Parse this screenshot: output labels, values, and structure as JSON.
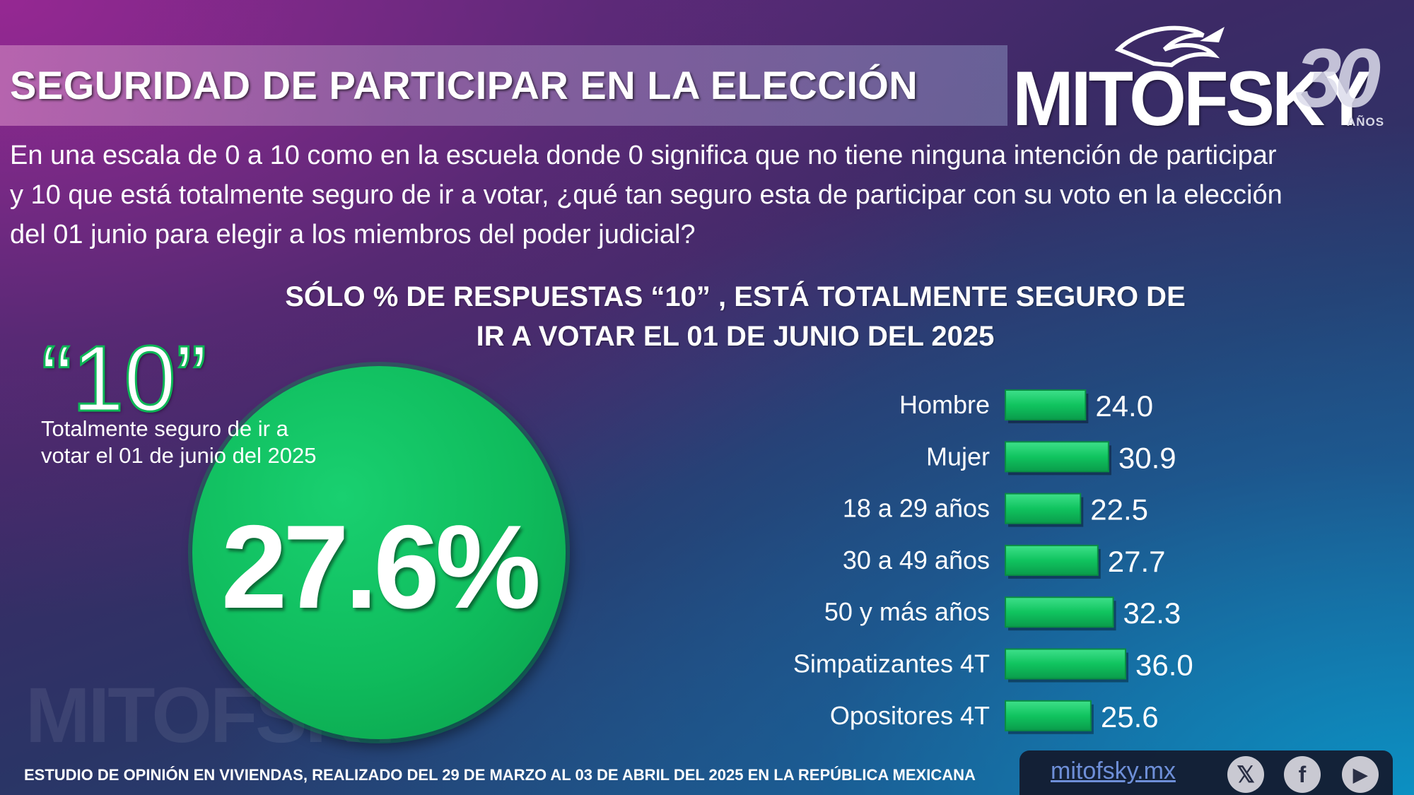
{
  "header": {
    "title": "SEGURIDAD DE PARTICIPAR EN LA ELECCIÓN",
    "logo_text": "MITOFSKY",
    "logo_number": "30",
    "logo_suffix": "AÑOS"
  },
  "question": "En una escala de 0 a 10 como en la escuela donde 0 significa que no tiene ninguna intención de participar y 10 que está totalmente seguro de ir a votar, ¿qué tan seguro esta de participar con su voto en la elección del 01 junio para elegir a los miembros del poder judicial?",
  "subtitle_line1": "SÓLO % DE RESPUESTAS “10” , ESTÁ TOTALMENTE SEGURO DE",
  "subtitle_line2": "IR A VOTAR EL 01  DE JUNIO DEL 2025",
  "highlight": {
    "big_label": "“10”",
    "caption_line1": "Totalmente seguro de ir a",
    "caption_line2": "votar el 01  de junio del 2025",
    "value": "27.6%"
  },
  "chart_data": {
    "type": "bar",
    "orientation": "horizontal",
    "categories": [
      "Hombre",
      "Mujer",
      "18 a 29 años",
      "30 a 49 años",
      "50 y más años",
      "Simpatizantes 4T",
      "Opositores 4T"
    ],
    "values": [
      24.0,
      30.9,
      22.5,
      27.7,
      32.3,
      36.0,
      25.6
    ],
    "value_labels": [
      "24.0",
      "30.9",
      "22.5",
      "27.7",
      "32.3",
      "36.0",
      "25.6"
    ],
    "bar_color": "#10c45f",
    "xlim": [
      0,
      36
    ]
  },
  "watermark": "MITOFSKY",
  "footer": "ESTUDIO DE OPINIÓN EN VIVIENDAS, REALIZADO DEL 29 DE MARZO AL 03 DE ABRIL DEL 2025 EN LA REPÚBLICA MEXICANA",
  "social": {
    "url": "mitofsky.mx",
    "icons": [
      "x-icon",
      "facebook-icon",
      "youtube-icon"
    ]
  }
}
